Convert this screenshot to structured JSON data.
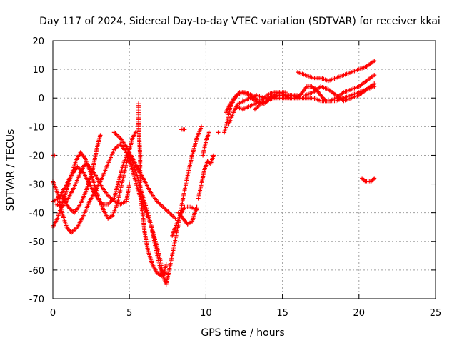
{
  "chart_data": {
    "type": "scatter",
    "title": "Day 117 of 2024, Sidereal Day-to-day VTEC variation (SDTVAR) for receiver kkai",
    "xlabel": "GPS time / hours",
    "ylabel": "SDTVAR / TECUs",
    "xlim": [
      0,
      25
    ],
    "ylim": [
      -70,
      20
    ],
    "xticks": [
      "0",
      "5",
      "10",
      "15",
      "20",
      "25"
    ],
    "yticks": [
      "20",
      "10",
      "0",
      "-10",
      "-20",
      "-30",
      "-40",
      "-50",
      "-60",
      "-70"
    ],
    "grid": true,
    "marker": "plus",
    "color": "#ff0000",
    "series": [
      {
        "points": [
          [
            0.0,
            -29
          ],
          [
            0.3,
            -33
          ],
          [
            0.6,
            -40
          ],
          [
            0.9,
            -45
          ],
          [
            1.2,
            -47
          ],
          [
            1.6,
            -45
          ],
          [
            2.0,
            -41
          ],
          [
            2.4,
            -36
          ],
          [
            2.8,
            -32
          ],
          [
            3.2,
            -28
          ],
          [
            3.6,
            -23
          ],
          [
            4.0,
            -18
          ],
          [
            4.4,
            -16
          ],
          [
            4.8,
            -19
          ],
          [
            5.2,
            -25
          ],
          [
            5.5,
            -31
          ],
          [
            5.8,
            -36
          ],
          [
            6.1,
            -40
          ],
          [
            6.4,
            -44
          ],
          [
            6.7,
            -50
          ],
          [
            7.0,
            -56
          ],
          [
            7.2,
            -62
          ],
          [
            7.4,
            -65
          ],
          [
            7.6,
            -60
          ],
          [
            7.9,
            -52
          ],
          [
            8.2,
            -44
          ],
          [
            8.5,
            -35
          ],
          [
            8.8,
            -27
          ],
          [
            9.1,
            -20
          ],
          [
            9.4,
            -14
          ],
          [
            9.7,
            -10
          ]
        ]
      },
      {
        "points": [
          [
            0.0,
            -20
          ],
          [
            0.1,
            -20
          ]
        ]
      },
      {
        "points": [
          [
            0.0,
            -45
          ],
          [
            0.3,
            -42
          ],
          [
            0.6,
            -37
          ],
          [
            0.9,
            -32
          ],
          [
            1.2,
            -27
          ],
          [
            1.5,
            -22
          ],
          [
            1.8,
            -19
          ],
          [
            2.1,
            -21
          ],
          [
            2.4,
            -25
          ],
          [
            2.7,
            -30
          ],
          [
            3.0,
            -35
          ],
          [
            3.3,
            -39
          ],
          [
            3.6,
            -42
          ],
          [
            3.9,
            -41
          ],
          [
            4.2,
            -37
          ],
          [
            4.5,
            -30
          ],
          [
            4.8,
            -23
          ],
          [
            5.0,
            -18
          ],
          [
            5.2,
            -14
          ],
          [
            5.4,
            -12
          ]
        ]
      },
      {
        "points": [
          [
            0.0,
            -36
          ],
          [
            0.4,
            -35
          ],
          [
            0.8,
            -31
          ],
          [
            1.2,
            -27
          ],
          [
            1.6,
            -24
          ],
          [
            2.0,
            -26
          ],
          [
            2.4,
            -30
          ],
          [
            2.8,
            -34
          ],
          [
            3.2,
            -37
          ],
          [
            3.6,
            -37
          ],
          [
            4.0,
            -35
          ],
          [
            4.3,
            -29
          ],
          [
            4.6,
            -23
          ],
          [
            4.9,
            -19
          ],
          [
            5.2,
            -22
          ],
          [
            5.5,
            -27
          ],
          [
            5.8,
            -33
          ],
          [
            6.1,
            -38
          ],
          [
            6.4,
            -44
          ],
          [
            6.7,
            -52
          ],
          [
            7.0,
            -59
          ],
          [
            7.2,
            -62
          ],
          [
            7.4,
            -58
          ]
        ]
      },
      {
        "points": [
          [
            0.6,
            -34
          ],
          [
            1.0,
            -38
          ],
          [
            1.4,
            -40
          ],
          [
            1.8,
            -37
          ],
          [
            2.2,
            -32
          ],
          [
            2.6,
            -25
          ],
          [
            2.9,
            -17
          ],
          [
            3.1,
            -13
          ]
        ]
      },
      {
        "points": [
          [
            0.2,
            -37
          ],
          [
            0.6,
            -38
          ],
          [
            1.0,
            -35
          ],
          [
            1.4,
            -31
          ],
          [
            1.8,
            -26
          ],
          [
            2.1,
            -23
          ],
          [
            2.4,
            -24
          ],
          [
            2.8,
            -27
          ],
          [
            3.2,
            -31
          ],
          [
            3.6,
            -34
          ],
          [
            4.0,
            -36
          ],
          [
            4.4,
            -37
          ],
          [
            4.8,
            -36
          ],
          [
            5.0,
            -30
          ]
        ]
      },
      {
        "points": [
          [
            4.0,
            -12
          ],
          [
            4.4,
            -14
          ],
          [
            4.8,
            -17
          ],
          [
            5.2,
            -21
          ],
          [
            5.6,
            -25
          ],
          [
            6.0,
            -29
          ],
          [
            6.4,
            -33
          ],
          [
            6.8,
            -36
          ],
          [
            7.2,
            -38
          ],
          [
            7.6,
            -40
          ],
          [
            8.0,
            -42
          ]
        ]
      },
      {
        "points": [
          [
            5.6,
            -2
          ],
          [
            5.6,
            -10
          ],
          [
            5.7,
            -20
          ],
          [
            5.7,
            -30
          ],
          [
            5.8,
            -38
          ],
          [
            5.9,
            -42
          ],
          [
            6.0,
            -47
          ],
          [
            6.2,
            -53
          ],
          [
            6.5,
            -58
          ],
          [
            6.8,
            -61
          ],
          [
            7.1,
            -62
          ],
          [
            7.4,
            -61
          ]
        ]
      },
      {
        "points": [
          [
            7.8,
            -48
          ],
          [
            8.0,
            -45
          ],
          [
            8.3,
            -41
          ],
          [
            8.6,
            -38
          ],
          [
            9.0,
            -38
          ],
          [
            9.4,
            -39
          ]
        ]
      },
      {
        "points": [
          [
            8.2,
            -40
          ],
          [
            8.5,
            -42
          ],
          [
            8.8,
            -44
          ],
          [
            9.1,
            -43
          ],
          [
            9.4,
            -38
          ]
        ]
      },
      {
        "points": [
          [
            8.4,
            -11
          ],
          [
            8.6,
            -11
          ]
        ]
      },
      {
        "points": [
          [
            9.5,
            -35
          ],
          [
            9.7,
            -30
          ],
          [
            9.9,
            -25
          ],
          [
            10.1,
            -22
          ],
          [
            10.3,
            -23
          ],
          [
            10.5,
            -20
          ]
        ]
      },
      {
        "points": [
          [
            9.8,
            -20
          ],
          [
            10.0,
            -15
          ],
          [
            10.2,
            -12
          ]
        ]
      },
      {
        "points": [
          [
            10.8,
            -12
          ]
        ]
      },
      {
        "points": [
          [
            11.2,
            -12
          ],
          [
            11.4,
            -8
          ],
          [
            11.6,
            -3
          ],
          [
            11.9,
            0
          ],
          [
            12.2,
            2
          ],
          [
            12.6,
            2
          ],
          [
            13.0,
            1
          ],
          [
            13.4,
            -1
          ],
          [
            13.8,
            -2
          ],
          [
            14.2,
            0
          ],
          [
            14.6,
            1
          ],
          [
            15.0,
            1
          ],
          [
            15.5,
            0
          ],
          [
            16.0,
            0
          ],
          [
            16.5,
            0
          ],
          [
            17.0,
            0
          ],
          [
            17.5,
            -1
          ],
          [
            18.0,
            -1
          ],
          [
            18.5,
            -1
          ],
          [
            19.0,
            0
          ],
          [
            19.5,
            1
          ],
          [
            20.0,
            2
          ],
          [
            20.5,
            3
          ],
          [
            21.0,
            5
          ]
        ]
      },
      {
        "points": [
          [
            11.3,
            -5
          ],
          [
            11.6,
            -2
          ],
          [
            12.0,
            1
          ],
          [
            12.4,
            2
          ],
          [
            12.8,
            1
          ],
          [
            13.2,
            -1
          ],
          [
            13.6,
            -2
          ],
          [
            14.0,
            -1
          ],
          [
            14.4,
            1
          ],
          [
            14.8,
            2
          ],
          [
            15.2,
            1
          ],
          [
            15.6,
            1
          ],
          [
            16.0,
            1
          ]
        ]
      },
      {
        "points": [
          [
            11.5,
            -9
          ],
          [
            11.8,
            -5
          ],
          [
            12.1,
            -2
          ],
          [
            12.5,
            -1
          ],
          [
            12.9,
            0
          ],
          [
            13.3,
            1
          ],
          [
            13.8,
            0
          ],
          [
            14.3,
            0
          ],
          [
            14.8,
            0
          ],
          [
            15.3,
            0
          ],
          [
            15.8,
            0
          ]
        ]
      },
      {
        "points": [
          [
            12.0,
            -3
          ],
          [
            12.4,
            -4
          ],
          [
            12.8,
            -3
          ],
          [
            13.2,
            -2
          ],
          [
            13.6,
            -1
          ],
          [
            14.0,
            1
          ],
          [
            14.4,
            2
          ],
          [
            14.8,
            2
          ],
          [
            15.2,
            2
          ]
        ]
      },
      {
        "points": [
          [
            13.2,
            -4
          ],
          [
            13.6,
            -2
          ],
          [
            14.0,
            -1
          ],
          [
            14.4,
            0
          ],
          [
            14.8,
            1
          ],
          [
            15.2,
            1
          ],
          [
            15.6,
            1
          ],
          [
            16.0,
            0
          ]
        ]
      },
      {
        "points": [
          [
            16.0,
            9
          ],
          [
            16.5,
            8
          ],
          [
            17.0,
            7
          ],
          [
            17.5,
            7
          ],
          [
            18.0,
            6
          ],
          [
            18.5,
            7
          ],
          [
            19.0,
            8
          ],
          [
            19.5,
            9
          ],
          [
            20.0,
            10
          ],
          [
            20.5,
            11
          ],
          [
            21.0,
            13
          ]
        ]
      },
      {
        "points": [
          [
            16.0,
            0
          ],
          [
            16.3,
            2
          ],
          [
            16.6,
            4
          ],
          [
            16.9,
            4
          ],
          [
            17.2,
            3
          ],
          [
            17.5,
            1
          ],
          [
            17.8,
            -1
          ],
          [
            18.1,
            -1
          ],
          [
            18.5,
            0
          ],
          [
            19.0,
            2
          ],
          [
            19.5,
            3
          ],
          [
            20.0,
            4
          ],
          [
            20.5,
            6
          ],
          [
            21.0,
            8
          ]
        ]
      },
      {
        "points": [
          [
            16.5,
            1
          ],
          [
            17.0,
            2
          ],
          [
            17.5,
            4
          ],
          [
            18.0,
            3
          ],
          [
            18.5,
            1
          ],
          [
            19.0,
            -1
          ],
          [
            19.5,
            0
          ],
          [
            20.0,
            1
          ],
          [
            20.5,
            3
          ],
          [
            21.0,
            4
          ]
        ]
      },
      {
        "points": [
          [
            20.2,
            -28
          ],
          [
            20.4,
            -29
          ],
          [
            20.6,
            -29
          ],
          [
            20.8,
            -29
          ],
          [
            21.0,
            -28
          ]
        ]
      }
    ]
  }
}
